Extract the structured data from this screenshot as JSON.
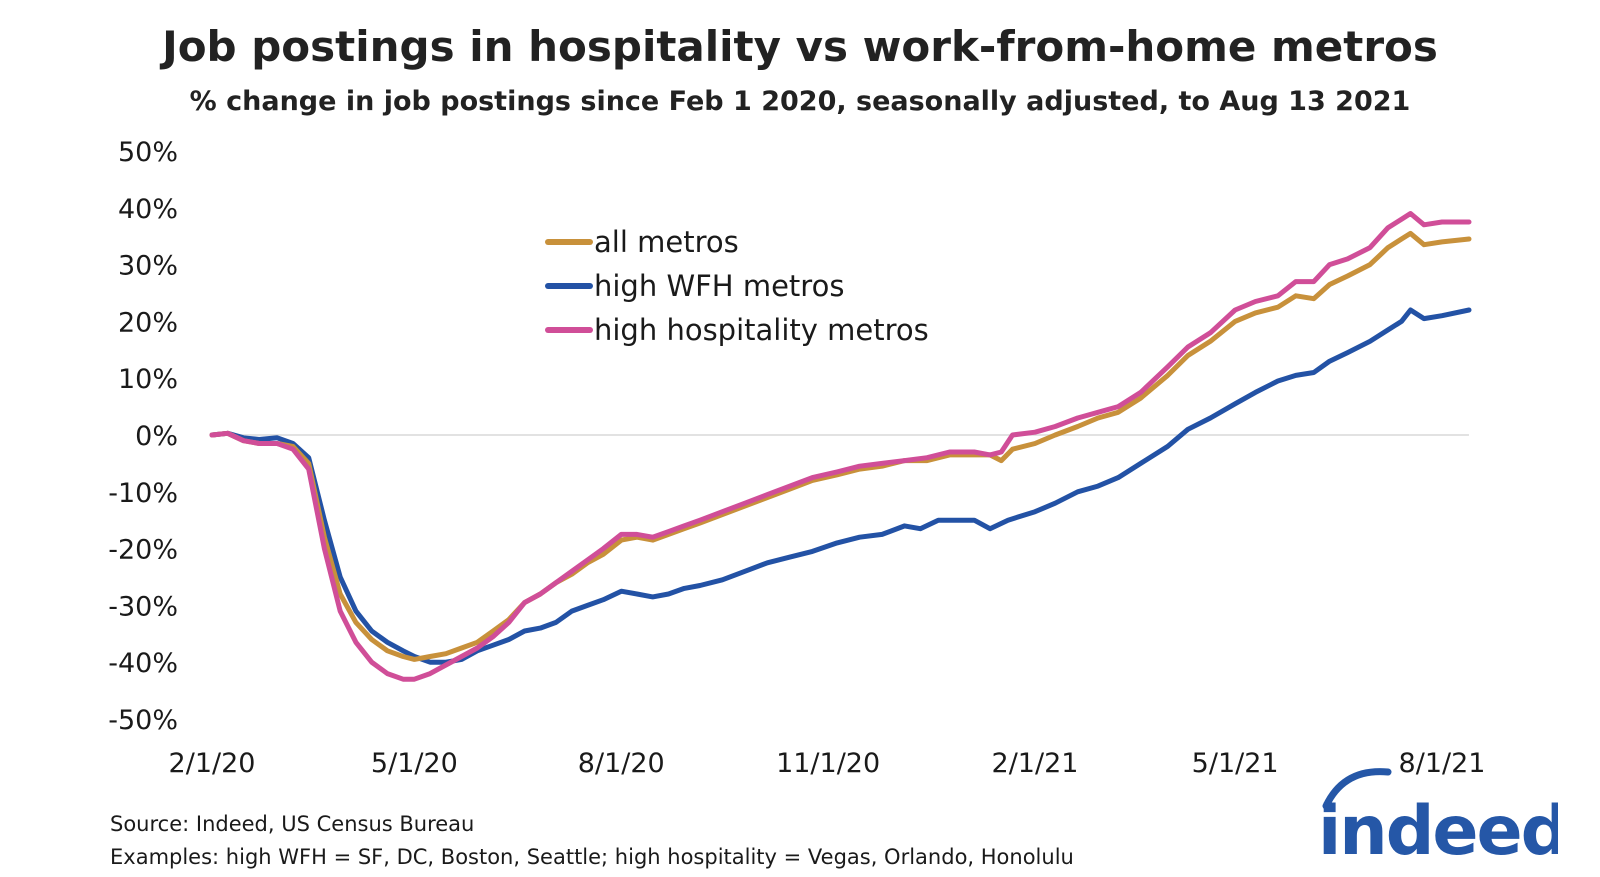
{
  "title": "Job postings in hospitality vs work-from-home metros",
  "subtitle": "% change in job postings since Feb 1 2020, seasonally adjusted, to Aug 13 2021",
  "source": "Source: Indeed, US Census Bureau",
  "examples": "Examples: high WFH = SF, DC, Boston, Seattle; high hospitality = Vegas, Orlando, Honolulu",
  "logo_text": "indeed",
  "colors": {
    "all": "#C8913B",
    "wfh": "#2352A5",
    "hosp": "#D04E98",
    "logo": "#2557A7",
    "zero_line": "#d9d9d9"
  },
  "chart_data": {
    "type": "line",
    "title": "Job postings in hospitality vs work-from-home metros",
    "subtitle": "% change in job postings since Feb 1 2020, seasonally adjusted, to Aug 13 2021",
    "ylim": [
      -50,
      50
    ],
    "yticks": [
      50,
      40,
      30,
      20,
      10,
      0,
      -10,
      -20,
      -30,
      -40,
      -50
    ],
    "ytick_labels": [
      "50%",
      "40%",
      "30%",
      "20%",
      "10%",
      "0%",
      "-10%",
      "-20%",
      "-30%",
      "-40%",
      "-50%"
    ],
    "xlim": [
      "2020-02-01",
      "2021-08-13"
    ],
    "xticks": [
      "2020-02-01",
      "2020-05-01",
      "2020-08-01",
      "2020-11-01",
      "2021-02-01",
      "2021-05-01",
      "2021-08-01"
    ],
    "xtick_labels": [
      "2/1/20",
      "5/1/20",
      "8/1/20",
      "11/1/20",
      "2/1/21",
      "5/1/21",
      "8/1/21"
    ],
    "grid": false,
    "legend_position": "upper-center",
    "series": [
      {
        "name": "all metros",
        "color": "#C8913B",
        "points": [
          [
            "2020-02-01",
            0
          ],
          [
            "2020-02-08",
            0.3
          ],
          [
            "2020-02-15",
            -1
          ],
          [
            "2020-02-22",
            -1.5
          ],
          [
            "2020-03-01",
            -1.5
          ],
          [
            "2020-03-08",
            -2
          ],
          [
            "2020-03-15",
            -5
          ],
          [
            "2020-03-22",
            -18
          ],
          [
            "2020-03-29",
            -28
          ],
          [
            "2020-04-05",
            -33
          ],
          [
            "2020-04-12",
            -36
          ],
          [
            "2020-04-19",
            -38
          ],
          [
            "2020-04-26",
            -39
          ],
          [
            "2020-05-01",
            -39.5
          ],
          [
            "2020-05-08",
            -39
          ],
          [
            "2020-05-15",
            -38.5
          ],
          [
            "2020-05-22",
            -37.5
          ],
          [
            "2020-05-29",
            -36.5
          ],
          [
            "2020-06-05",
            -34.5
          ],
          [
            "2020-06-12",
            -32.5
          ],
          [
            "2020-06-19",
            -29.5
          ],
          [
            "2020-06-26",
            -28
          ],
          [
            "2020-07-03",
            -26
          ],
          [
            "2020-07-10",
            -24.5
          ],
          [
            "2020-07-17",
            -22.5
          ],
          [
            "2020-07-24",
            -21
          ],
          [
            "2020-08-01",
            -18.5
          ],
          [
            "2020-08-08",
            -18
          ],
          [
            "2020-08-15",
            -18.5
          ],
          [
            "2020-08-22",
            -17.5
          ],
          [
            "2020-08-29",
            -16.5
          ],
          [
            "2020-09-05",
            -15.5
          ],
          [
            "2020-09-15",
            -14
          ],
          [
            "2020-09-25",
            -12.5
          ],
          [
            "2020-10-05",
            -11
          ],
          [
            "2020-10-15",
            -9.5
          ],
          [
            "2020-10-25",
            -8
          ],
          [
            "2020-11-05",
            -7
          ],
          [
            "2020-11-15",
            -6
          ],
          [
            "2020-11-25",
            -5.5
          ],
          [
            "2020-12-05",
            -4.5
          ],
          [
            "2020-12-15",
            -4.5
          ],
          [
            "2020-12-25",
            -3.5
          ],
          [
            "2021-01-05",
            -3.5
          ],
          [
            "2021-01-12",
            -3.5
          ],
          [
            "2021-01-17",
            -4.5
          ],
          [
            "2021-01-22",
            -2.5
          ],
          [
            "2021-02-01",
            -1.5
          ],
          [
            "2021-02-10",
            0
          ],
          [
            "2021-02-20",
            1.5
          ],
          [
            "2021-03-01",
            3
          ],
          [
            "2021-03-10",
            4
          ],
          [
            "2021-03-20",
            6.5
          ],
          [
            "2021-04-01",
            10.5
          ],
          [
            "2021-04-10",
            14
          ],
          [
            "2021-04-20",
            16.5
          ],
          [
            "2021-05-01",
            20
          ],
          [
            "2021-05-10",
            21.5
          ],
          [
            "2021-05-20",
            22.5
          ],
          [
            "2021-05-28",
            24.5
          ],
          [
            "2021-06-05",
            24
          ],
          [
            "2021-06-12",
            26.5
          ],
          [
            "2021-06-20",
            28
          ],
          [
            "2021-06-30",
            30
          ],
          [
            "2021-07-08",
            33
          ],
          [
            "2021-07-14",
            34.5
          ],
          [
            "2021-07-18",
            35.5
          ],
          [
            "2021-07-24",
            33.5
          ],
          [
            "2021-08-01",
            34
          ],
          [
            "2021-08-13",
            34.5
          ]
        ]
      },
      {
        "name": "high WFH metros",
        "color": "#2352A5",
        "points": [
          [
            "2020-02-01",
            0
          ],
          [
            "2020-02-08",
            0.3
          ],
          [
            "2020-02-15",
            -0.5
          ],
          [
            "2020-02-22",
            -0.8
          ],
          [
            "2020-03-01",
            -0.5
          ],
          [
            "2020-03-08",
            -1.5
          ],
          [
            "2020-03-15",
            -4
          ],
          [
            "2020-03-22",
            -15
          ],
          [
            "2020-03-29",
            -25
          ],
          [
            "2020-04-05",
            -31
          ],
          [
            "2020-04-12",
            -34.5
          ],
          [
            "2020-04-19",
            -36.5
          ],
          [
            "2020-04-26",
            -38
          ],
          [
            "2020-05-01",
            -39
          ],
          [
            "2020-05-08",
            -40
          ],
          [
            "2020-05-15",
            -40
          ],
          [
            "2020-05-22",
            -39.5
          ],
          [
            "2020-05-29",
            -38
          ],
          [
            "2020-06-05",
            -37
          ],
          [
            "2020-06-12",
            -36
          ],
          [
            "2020-06-19",
            -34.5
          ],
          [
            "2020-06-26",
            -34
          ],
          [
            "2020-07-03",
            -33
          ],
          [
            "2020-07-10",
            -31
          ],
          [
            "2020-07-17",
            -30
          ],
          [
            "2020-07-24",
            -29
          ],
          [
            "2020-08-01",
            -27.5
          ],
          [
            "2020-08-08",
            -28
          ],
          [
            "2020-08-15",
            -28.5
          ],
          [
            "2020-08-22",
            -28
          ],
          [
            "2020-08-29",
            -27
          ],
          [
            "2020-09-05",
            -26.5
          ],
          [
            "2020-09-15",
            -25.5
          ],
          [
            "2020-09-25",
            -24
          ],
          [
            "2020-10-05",
            -22.5
          ],
          [
            "2020-10-15",
            -21.5
          ],
          [
            "2020-10-25",
            -20.5
          ],
          [
            "2020-11-05",
            -19
          ],
          [
            "2020-11-15",
            -18
          ],
          [
            "2020-11-25",
            -17.5
          ],
          [
            "2020-12-05",
            -16
          ],
          [
            "2020-12-12",
            -16.5
          ],
          [
            "2020-12-20",
            -15
          ],
          [
            "2020-12-28",
            -15
          ],
          [
            "2021-01-05",
            -15
          ],
          [
            "2021-01-12",
            -16.5
          ],
          [
            "2021-01-20",
            -15
          ],
          [
            "2021-02-01",
            -13.5
          ],
          [
            "2021-02-10",
            -12
          ],
          [
            "2021-02-20",
            -10
          ],
          [
            "2021-03-01",
            -9
          ],
          [
            "2021-03-10",
            -7.5
          ],
          [
            "2021-03-20",
            -5
          ],
          [
            "2021-04-01",
            -2
          ],
          [
            "2021-04-10",
            1
          ],
          [
            "2021-04-20",
            3
          ],
          [
            "2021-05-01",
            5.5
          ],
          [
            "2021-05-10",
            7.5
          ],
          [
            "2021-05-20",
            9.5
          ],
          [
            "2021-05-28",
            10.5
          ],
          [
            "2021-06-05",
            11
          ],
          [
            "2021-06-12",
            13
          ],
          [
            "2021-06-20",
            14.5
          ],
          [
            "2021-06-30",
            16.5
          ],
          [
            "2021-07-08",
            18.5
          ],
          [
            "2021-07-14",
            20
          ],
          [
            "2021-07-18",
            22
          ],
          [
            "2021-07-24",
            20.5
          ],
          [
            "2021-08-01",
            21
          ],
          [
            "2021-08-13",
            22
          ]
        ]
      },
      {
        "name": "high hospitality metros",
        "color": "#D04E98",
        "points": [
          [
            "2020-02-01",
            0
          ],
          [
            "2020-02-08",
            0.3
          ],
          [
            "2020-02-15",
            -1
          ],
          [
            "2020-02-22",
            -1.5
          ],
          [
            "2020-03-01",
            -1.5
          ],
          [
            "2020-03-08",
            -2.5
          ],
          [
            "2020-03-15",
            -6
          ],
          [
            "2020-03-22",
            -20
          ],
          [
            "2020-03-29",
            -31
          ],
          [
            "2020-04-05",
            -36.5
          ],
          [
            "2020-04-12",
            -40
          ],
          [
            "2020-04-19",
            -42
          ],
          [
            "2020-04-26",
            -43
          ],
          [
            "2020-05-01",
            -43
          ],
          [
            "2020-05-08",
            -42
          ],
          [
            "2020-05-15",
            -40.5
          ],
          [
            "2020-05-22",
            -39
          ],
          [
            "2020-05-29",
            -37.5
          ],
          [
            "2020-06-05",
            -35.5
          ],
          [
            "2020-06-12",
            -33
          ],
          [
            "2020-06-19",
            -29.5
          ],
          [
            "2020-06-26",
            -28
          ],
          [
            "2020-07-03",
            -26
          ],
          [
            "2020-07-10",
            -24
          ],
          [
            "2020-07-17",
            -22
          ],
          [
            "2020-07-24",
            -20
          ],
          [
            "2020-08-01",
            -17.5
          ],
          [
            "2020-08-08",
            -17.5
          ],
          [
            "2020-08-15",
            -18
          ],
          [
            "2020-08-22",
            -17
          ],
          [
            "2020-08-29",
            -16
          ],
          [
            "2020-09-05",
            -15
          ],
          [
            "2020-09-15",
            -13.5
          ],
          [
            "2020-09-25",
            -12
          ],
          [
            "2020-10-05",
            -10.5
          ],
          [
            "2020-10-15",
            -9
          ],
          [
            "2020-10-25",
            -7.5
          ],
          [
            "2020-11-05",
            -6.5
          ],
          [
            "2020-11-15",
            -5.5
          ],
          [
            "2020-11-25",
            -5
          ],
          [
            "2020-12-05",
            -4.5
          ],
          [
            "2020-12-15",
            -4
          ],
          [
            "2020-12-25",
            -3
          ],
          [
            "2021-01-05",
            -3
          ],
          [
            "2021-01-12",
            -3.5
          ],
          [
            "2021-01-17",
            -3
          ],
          [
            "2021-01-22",
            0
          ],
          [
            "2021-02-01",
            0.5
          ],
          [
            "2021-02-10",
            1.5
          ],
          [
            "2021-02-20",
            3
          ],
          [
            "2021-03-01",
            4
          ],
          [
            "2021-03-10",
            5
          ],
          [
            "2021-03-20",
            7.5
          ],
          [
            "2021-04-01",
            12
          ],
          [
            "2021-04-10",
            15.5
          ],
          [
            "2021-04-20",
            18
          ],
          [
            "2021-05-01",
            22
          ],
          [
            "2021-05-10",
            23.5
          ],
          [
            "2021-05-20",
            24.5
          ],
          [
            "2021-05-28",
            27
          ],
          [
            "2021-06-05",
            27
          ],
          [
            "2021-06-12",
            30
          ],
          [
            "2021-06-20",
            31
          ],
          [
            "2021-06-30",
            33
          ],
          [
            "2021-07-08",
            36.5
          ],
          [
            "2021-07-14",
            38
          ],
          [
            "2021-07-18",
            39
          ],
          [
            "2021-07-24",
            37
          ],
          [
            "2021-08-01",
            37.5
          ],
          [
            "2021-08-13",
            37.5
          ]
        ]
      }
    ]
  }
}
